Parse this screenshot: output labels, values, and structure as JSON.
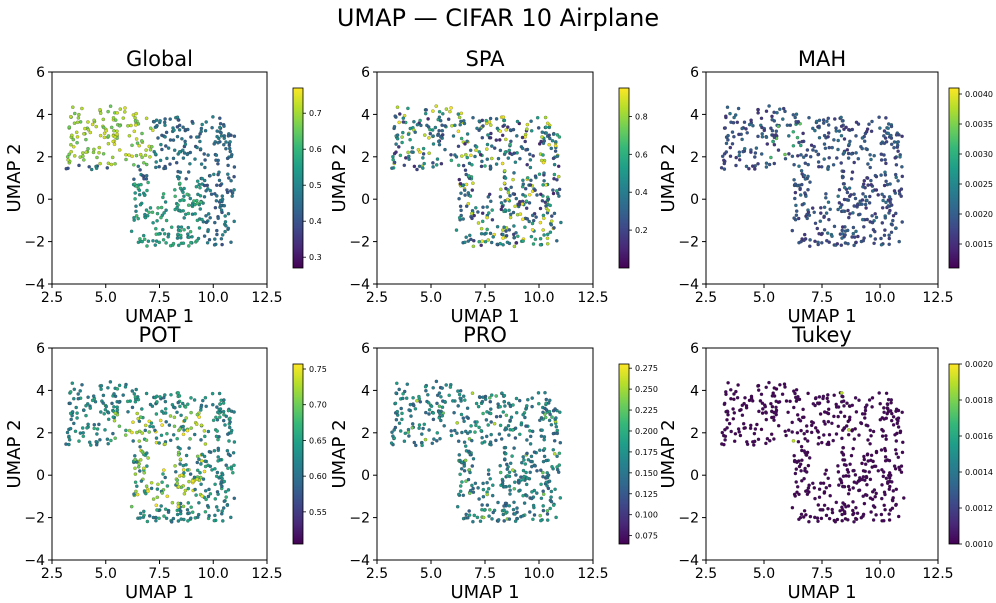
{
  "figure": {
    "title": "UMAP — CIFAR 10 Airplane"
  },
  "chart_data": [
    {
      "type": "scatter",
      "title": "Global",
      "xlabel": "UMAP 1",
      "ylabel": "UMAP 2",
      "xlim": [
        2.5,
        12.5
      ],
      "ylim": [
        -4,
        6
      ],
      "xticks": [
        {
          "v": 2.5,
          "label": "2.5"
        },
        {
          "v": 5.0,
          "label": "5.0"
        },
        {
          "v": 7.5,
          "label": "7.5"
        },
        {
          "v": 10.0,
          "label": "10.0"
        },
        {
          "v": 12.5,
          "label": "12.5"
        }
      ],
      "yticks": [
        {
          "v": -4,
          "label": "−4"
        },
        {
          "v": -2,
          "label": "−2"
        },
        {
          "v": 0,
          "label": "0"
        },
        {
          "v": 2,
          "label": "2"
        },
        {
          "v": 4,
          "label": "4"
        },
        {
          "v": 6,
          "label": "6"
        }
      ],
      "colorbar": {
        "min": 0.27,
        "max": 0.77,
        "ticks": [
          {
            "v": 0.3,
            "label": "0.3"
          },
          {
            "v": 0.4,
            "label": "0.4"
          },
          {
            "v": 0.5,
            "label": "0.5"
          },
          {
            "v": 0.6,
            "label": "0.6"
          },
          {
            "v": 0.7,
            "label": "0.7"
          }
        ]
      },
      "color_pattern": "left-high",
      "point_count": 520
    },
    {
      "type": "scatter",
      "title": "SPA",
      "xlabel": "UMAP 1",
      "ylabel": "UMAP 2",
      "xlim": [
        2.5,
        12.5
      ],
      "ylim": [
        -4,
        6
      ],
      "xticks": [
        {
          "v": 2.5,
          "label": "2.5"
        },
        {
          "v": 5.0,
          "label": "5.0"
        },
        {
          "v": 7.5,
          "label": "7.5"
        },
        {
          "v": 10.0,
          "label": "10.0"
        },
        {
          "v": 12.5,
          "label": "12.5"
        }
      ],
      "yticks": [
        {
          "v": -4,
          "label": "−4"
        },
        {
          "v": -2,
          "label": "−2"
        },
        {
          "v": 0,
          "label": "0"
        },
        {
          "v": 2,
          "label": "2"
        },
        {
          "v": 4,
          "label": "4"
        },
        {
          "v": 6,
          "label": "6"
        }
      ],
      "colorbar": {
        "min": 0.0,
        "max": 0.95,
        "ticks": [
          {
            "v": 0.2,
            "label": "0.2"
          },
          {
            "v": 0.4,
            "label": "0.4"
          },
          {
            "v": 0.6,
            "label": "0.6"
          },
          {
            "v": 0.8,
            "label": "0.8"
          }
        ]
      },
      "color_pattern": "mixed",
      "point_count": 520
    },
    {
      "type": "scatter",
      "title": "MAH",
      "xlabel": "UMAP 1",
      "ylabel": "UMAP 2",
      "xlim": [
        2.5,
        12.5
      ],
      "ylim": [
        -4,
        6
      ],
      "xticks": [
        {
          "v": 2.5,
          "label": "2.5"
        },
        {
          "v": 5.0,
          "label": "5.0"
        },
        {
          "v": 7.5,
          "label": "7.5"
        },
        {
          "v": 10.0,
          "label": "10.0"
        },
        {
          "v": 12.5,
          "label": "12.5"
        }
      ],
      "yticks": [
        {
          "v": -4,
          "label": "−4"
        },
        {
          "v": -2,
          "label": "−2"
        },
        {
          "v": 0,
          "label": "0"
        },
        {
          "v": 2,
          "label": "2"
        },
        {
          "v": 4,
          "label": "4"
        },
        {
          "v": 6,
          "label": "6"
        }
      ],
      "colorbar": {
        "min": 0.0011,
        "max": 0.0041,
        "ticks": [
          {
            "v": 0.0015,
            "label": "0.0015"
          },
          {
            "v": 0.002,
            "label": "0.0020"
          },
          {
            "v": 0.0025,
            "label": "0.0025"
          },
          {
            "v": 0.003,
            "label": "0.0030"
          },
          {
            "v": 0.0035,
            "label": "0.0035"
          },
          {
            "v": 0.004,
            "label": "0.0040"
          }
        ]
      },
      "color_pattern": "low",
      "point_count": 520
    },
    {
      "type": "scatter",
      "title": "POT",
      "xlabel": "UMAP 1",
      "ylabel": "UMAP 2",
      "xlim": [
        2.5,
        12.5
      ],
      "ylim": [
        -4,
        6
      ],
      "xticks": [
        {
          "v": 2.5,
          "label": "2.5"
        },
        {
          "v": 5.0,
          "label": "5.0"
        },
        {
          "v": 7.5,
          "label": "7.5"
        },
        {
          "v": 10.0,
          "label": "10.0"
        },
        {
          "v": 12.5,
          "label": "12.5"
        }
      ],
      "yticks": [
        {
          "v": -4,
          "label": "−4"
        },
        {
          "v": -2,
          "label": "−2"
        },
        {
          "v": 0,
          "label": "0"
        },
        {
          "v": 2,
          "label": "2"
        },
        {
          "v": 4,
          "label": "4"
        },
        {
          "v": 6,
          "label": "6"
        }
      ],
      "colorbar": {
        "min": 0.505,
        "max": 0.757,
        "ticks": [
          {
            "v": 0.55,
            "label": "0.55"
          },
          {
            "v": 0.6,
            "label": "0.60"
          },
          {
            "v": 0.65,
            "label": "0.65"
          },
          {
            "v": 0.7,
            "label": "0.70"
          },
          {
            "v": 0.75,
            "label": "0.75"
          }
        ]
      },
      "color_pattern": "mid-high",
      "point_count": 520
    },
    {
      "type": "scatter",
      "title": "PRO",
      "xlabel": "UMAP 1",
      "ylabel": "UMAP 2",
      "xlim": [
        2.5,
        12.5
      ],
      "ylim": [
        -4,
        6
      ],
      "xticks": [
        {
          "v": 2.5,
          "label": "2.5"
        },
        {
          "v": 5.0,
          "label": "5.0"
        },
        {
          "v": 7.5,
          "label": "7.5"
        },
        {
          "v": 10.0,
          "label": "10.0"
        },
        {
          "v": 12.5,
          "label": "12.5"
        }
      ],
      "yticks": [
        {
          "v": -4,
          "label": "−4"
        },
        {
          "v": -2,
          "label": "−2"
        },
        {
          "v": 0,
          "label": "0"
        },
        {
          "v": 2,
          "label": "2"
        },
        {
          "v": 4,
          "label": "4"
        },
        {
          "v": 6,
          "label": "6"
        }
      ],
      "colorbar": {
        "min": 0.065,
        "max": 0.28,
        "ticks": [
          {
            "v": 0.075,
            "label": "0.075"
          },
          {
            "v": 0.1,
            "label": "0.100"
          },
          {
            "v": 0.125,
            "label": "0.125"
          },
          {
            "v": 0.15,
            "label": "0.150"
          },
          {
            "v": 0.175,
            "label": "0.175"
          },
          {
            "v": 0.2,
            "label": "0.200"
          },
          {
            "v": 0.225,
            "label": "0.225"
          },
          {
            "v": 0.25,
            "label": "0.250"
          },
          {
            "v": 0.275,
            "label": "0.275"
          }
        ]
      },
      "color_pattern": "mid",
      "point_count": 520
    },
    {
      "type": "scatter",
      "title": "Tukey",
      "xlabel": "UMAP 1",
      "ylabel": "UMAP 2",
      "xlim": [
        2.5,
        12.5
      ],
      "ylim": [
        -4,
        6
      ],
      "xticks": [
        {
          "v": 2.5,
          "label": "2.5"
        },
        {
          "v": 5.0,
          "label": "5.0"
        },
        {
          "v": 7.5,
          "label": "7.5"
        },
        {
          "v": 10.0,
          "label": "10.0"
        },
        {
          "v": 12.5,
          "label": "12.5"
        }
      ],
      "yticks": [
        {
          "v": -4,
          "label": "−4"
        },
        {
          "v": -2,
          "label": "−2"
        },
        {
          "v": 0,
          "label": "0"
        },
        {
          "v": 2,
          "label": "2"
        },
        {
          "v": 4,
          "label": "4"
        },
        {
          "v": 6,
          "label": "6"
        }
      ],
      "colorbar": {
        "min": 0.001,
        "max": 0.002,
        "ticks": [
          {
            "v": 0.001,
            "label": "0.0010"
          },
          {
            "v": 0.0012,
            "label": "0.0012"
          },
          {
            "v": 0.0014,
            "label": "0.0014"
          },
          {
            "v": 0.0016,
            "label": "0.0016"
          },
          {
            "v": 0.0018,
            "label": "0.0018"
          },
          {
            "v": 0.002,
            "label": "0.0020"
          }
        ]
      },
      "color_pattern": "min",
      "point_count": 520
    }
  ]
}
